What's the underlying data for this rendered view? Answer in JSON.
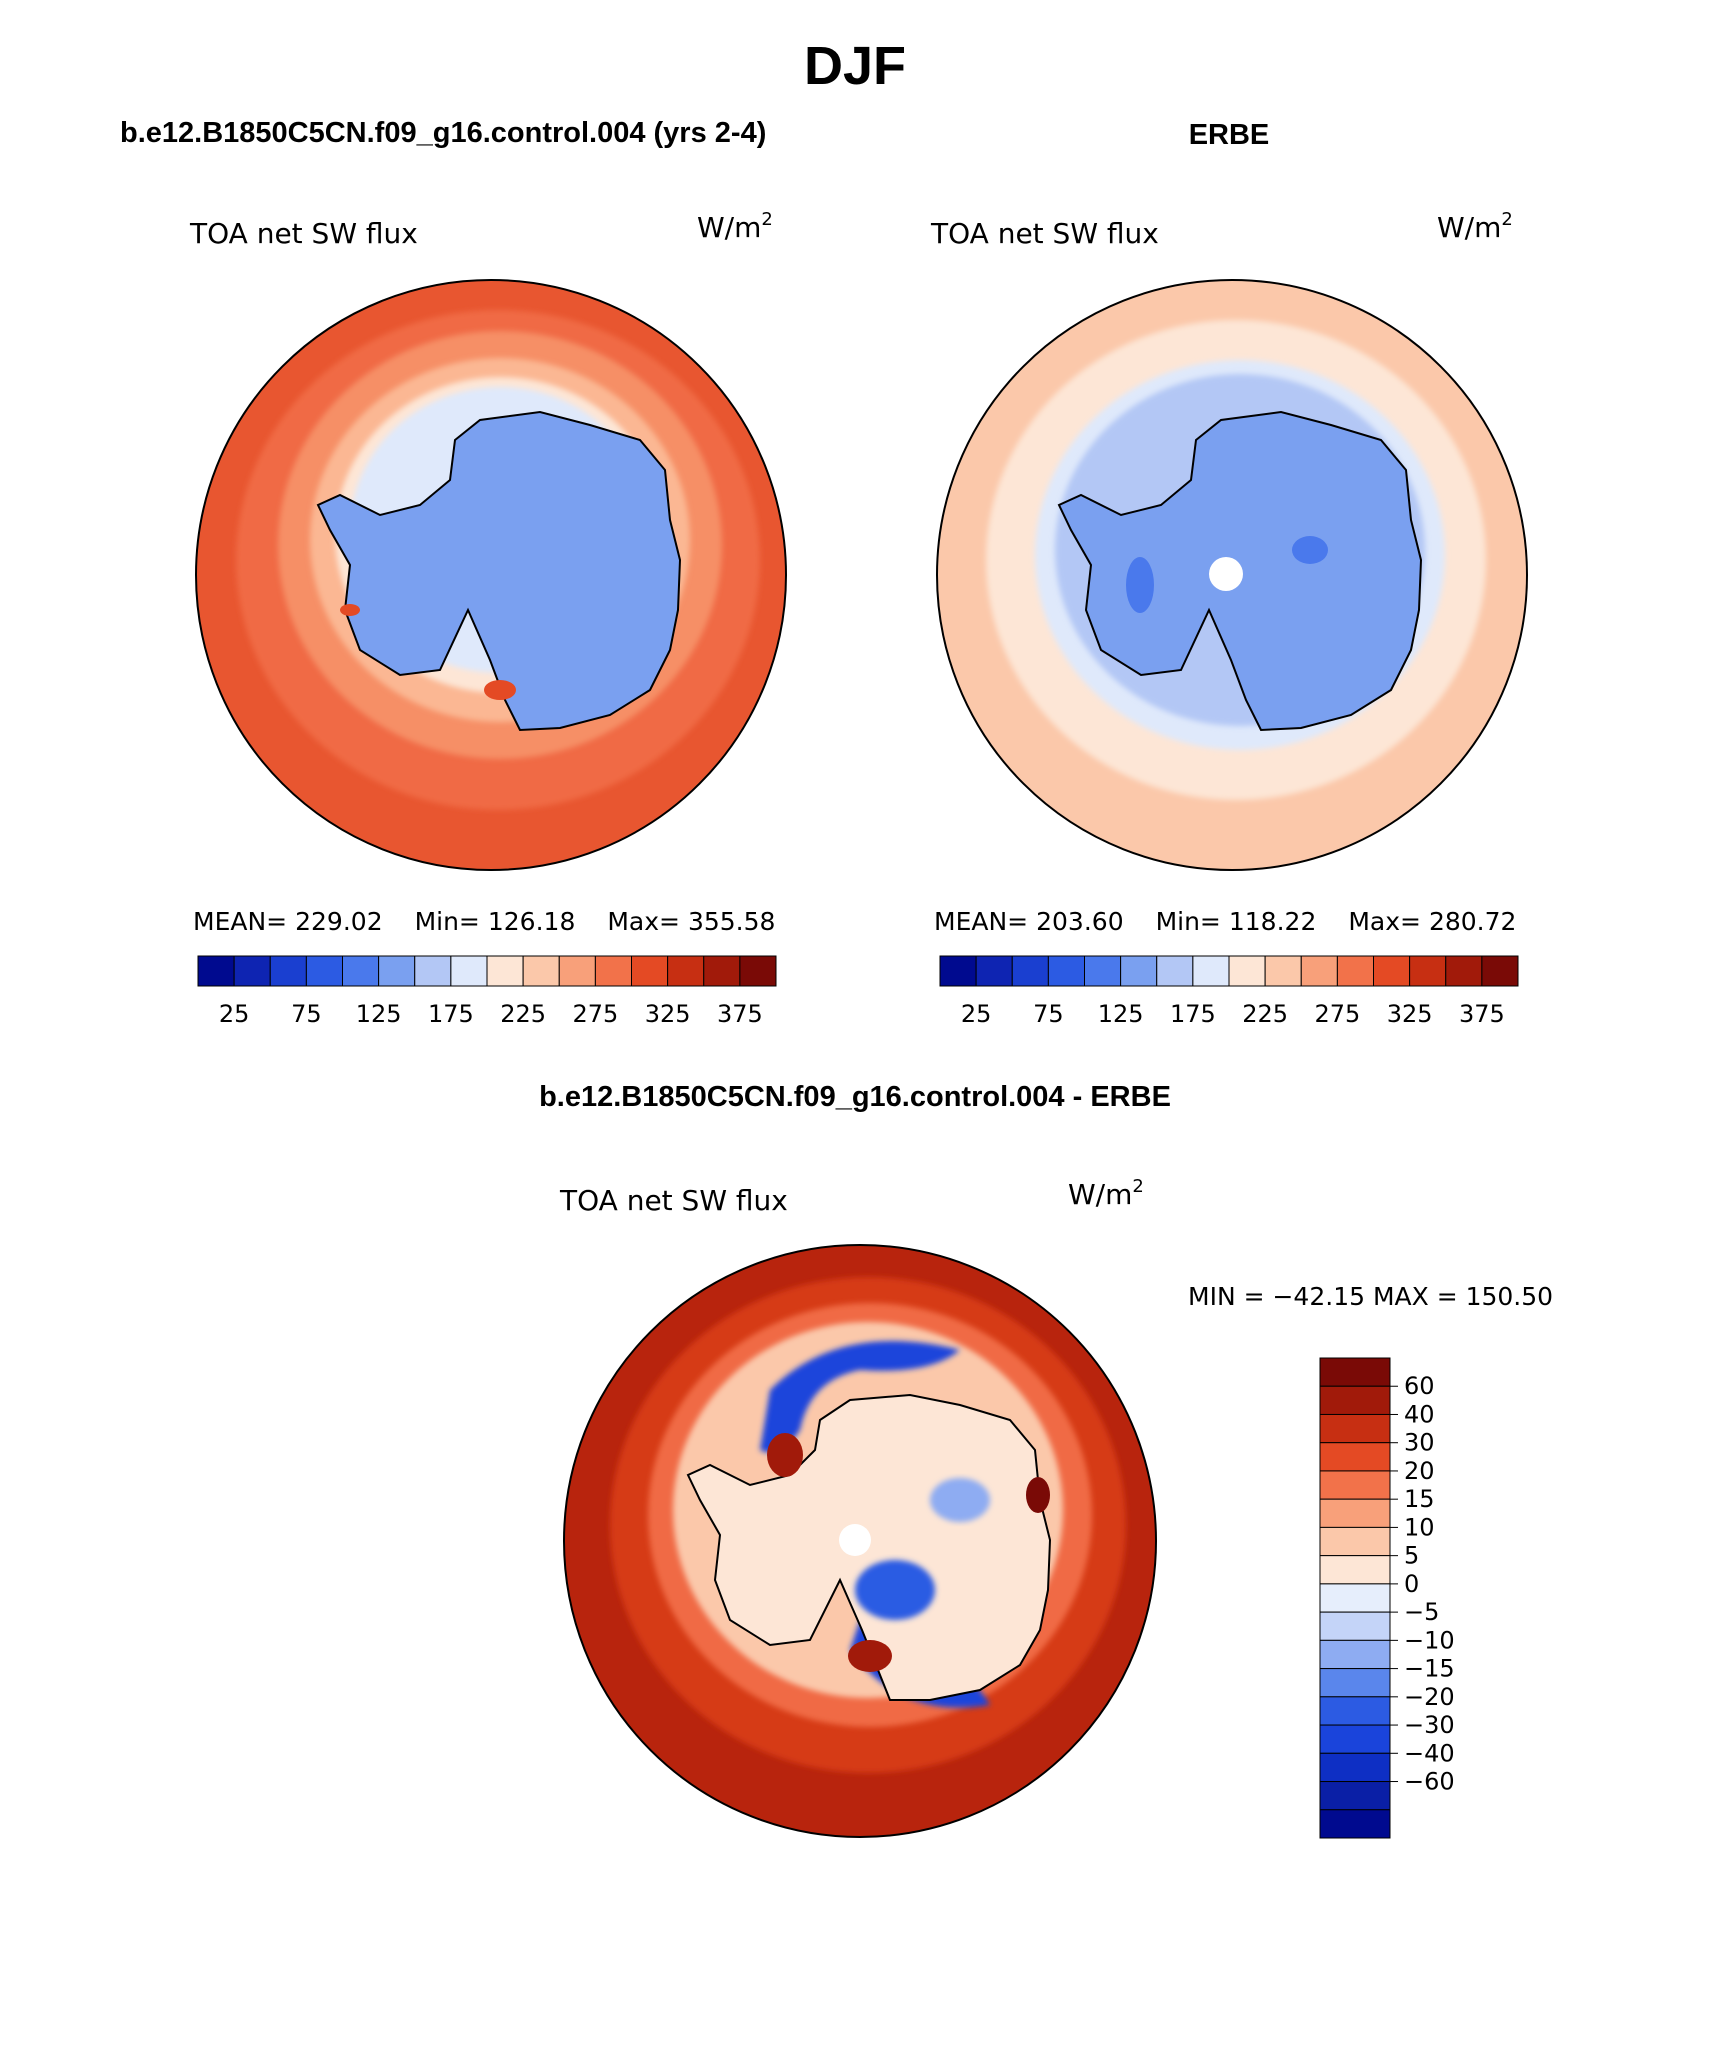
{
  "figure": {
    "season": "DJF",
    "colors": {
      "abs_scale": [
        "#000a8f",
        "#0e24b2",
        "#1a3fd0",
        "#2c5be3",
        "#4a79ec",
        "#7aa0f0",
        "#b3c7f5",
        "#dfe9fb",
        "#fde6d6",
        "#fbc8aa",
        "#f8a07a",
        "#f2724a",
        "#e44a24",
        "#c72f12",
        "#a11a0a",
        "#7a0a06"
      ],
      "diff_scale": [
        "#000a8f",
        "#0a1fa6",
        "#0e2fc4",
        "#1a44db",
        "#2c5be3",
        "#5a86ec",
        "#8eacf2",
        "#c4d4f8",
        "#e6eefc",
        "#fde6d6",
        "#fbc8aa",
        "#f8a07a",
        "#f2724a",
        "#e44a24",
        "#c72f12",
        "#a11a0a",
        "#7a0a06"
      ],
      "land_outline": "#000000"
    },
    "panels": [
      {
        "id": "model",
        "title": "b.e12.B1850C5CN.f09_g16.control.004 (yrs 2-4)",
        "variable": "TOA net SW flux",
        "units": "W/m",
        "units_exp": "2",
        "stats": {
          "mean_label": "MEAN=",
          "mean": "229.02",
          "min_label": "Min=",
          "min": "126.18",
          "max_label": "Max=",
          "max": "355.58"
        },
        "colorbar_labels": [
          "25",
          "75",
          "125",
          "175",
          "225",
          "275",
          "325",
          "375"
        ]
      },
      {
        "id": "obs",
        "title": "ERBE",
        "variable": "TOA net SW flux",
        "units": "W/m",
        "units_exp": "2",
        "stats": {
          "mean_label": "MEAN=",
          "mean": "203.60",
          "min_label": "Min=",
          "min": "118.22",
          "max_label": "Max=",
          "max": "280.72"
        },
        "colorbar_labels": [
          "25",
          "75",
          "125",
          "175",
          "225",
          "275",
          "325",
          "375"
        ]
      },
      {
        "id": "diff",
        "title": "b.e12.B1850C5CN.f09_g16.control.004 - ERBE",
        "variable": "TOA net SW flux",
        "units": "W/m",
        "units_exp": "2",
        "minmax": "MIN = −42.15 MAX = 150.50",
        "colorbar_labels": [
          "60",
          "40",
          "30",
          "20",
          "15",
          "10",
          "5",
          "0",
          "−5",
          "−10",
          "−15",
          "−20",
          "−30",
          "−40",
          "−60"
        ]
      }
    ]
  }
}
